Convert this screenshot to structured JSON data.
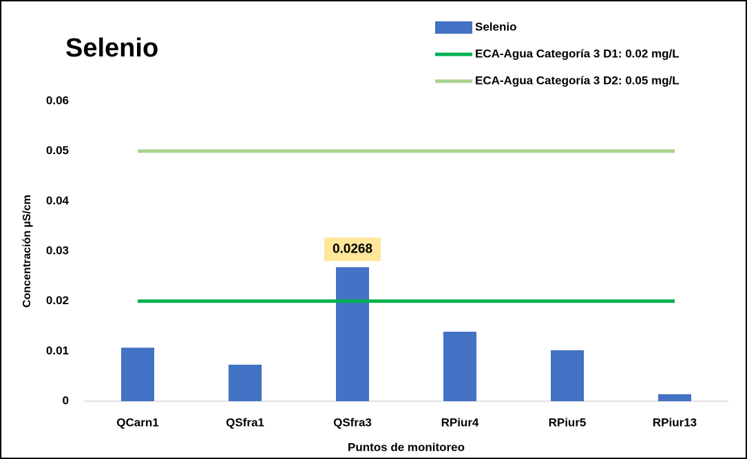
{
  "chart_data": {
    "type": "bar",
    "title": "Selenio",
    "x_label": "Puntos de monitoreo",
    "y_label": "Concentración µS/cm",
    "categories": [
      "QCarn1",
      "QSfra1",
      "QSfra3",
      "RPiur4",
      "RPiur5",
      "RPiur13"
    ],
    "series": [
      {
        "name": "Selenio",
        "type": "bar",
        "color": "#4472c4",
        "values": [
          0.0107,
          0.0073,
          0.0268,
          0.0139,
          0.0102,
          0.0014
        ],
        "value_labels": [
          null,
          null,
          "0.0268",
          null,
          null,
          null
        ]
      },
      {
        "name": "ECA-Agua Categoría 3 D1: 0.02 mg/L",
        "type": "line",
        "color": "#00b050",
        "values": [
          0.02,
          0.02,
          0.02,
          0.02,
          0.02,
          0.02
        ]
      },
      {
        "name": "ECA-Agua Categoría 3 D2: 0.05 mg/L",
        "type": "line",
        "color": "#a9d18e",
        "values": [
          0.05,
          0.05,
          0.05,
          0.05,
          0.05,
          0.05
        ]
      }
    ],
    "ylim": [
      0,
      0.06
    ],
    "yticks": [
      0,
      0.01,
      0.02,
      0.03,
      0.04,
      0.05,
      0.06
    ],
    "grid": false,
    "legend": "top-right"
  }
}
